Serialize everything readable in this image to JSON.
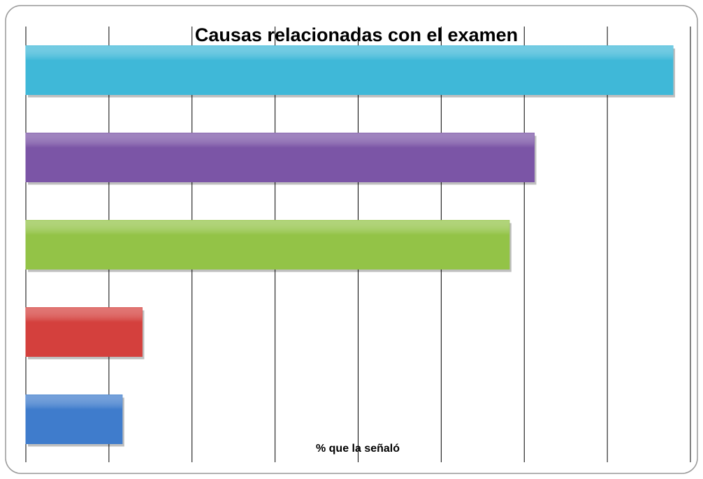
{
  "chart_data": {
    "type": "bar",
    "orientation": "horizontal",
    "title": "Causas relacionadas con el examen",
    "x_label": "% que la señaló",
    "categories": [
      null,
      null,
      null,
      null,
      null
    ],
    "values": [
      7.79,
      6.12,
      5.82,
      1.4,
      1.16
    ],
    "colors": [
      "#3fb8d8",
      "#7b55a6",
      "#93c347",
      "#d4403d",
      "#3f7ccc"
    ],
    "xlim": [
      0,
      8
    ],
    "xticks": [
      0,
      1,
      2,
      3,
      4,
      5,
      6,
      7,
      8
    ],
    "grid": true
  }
}
